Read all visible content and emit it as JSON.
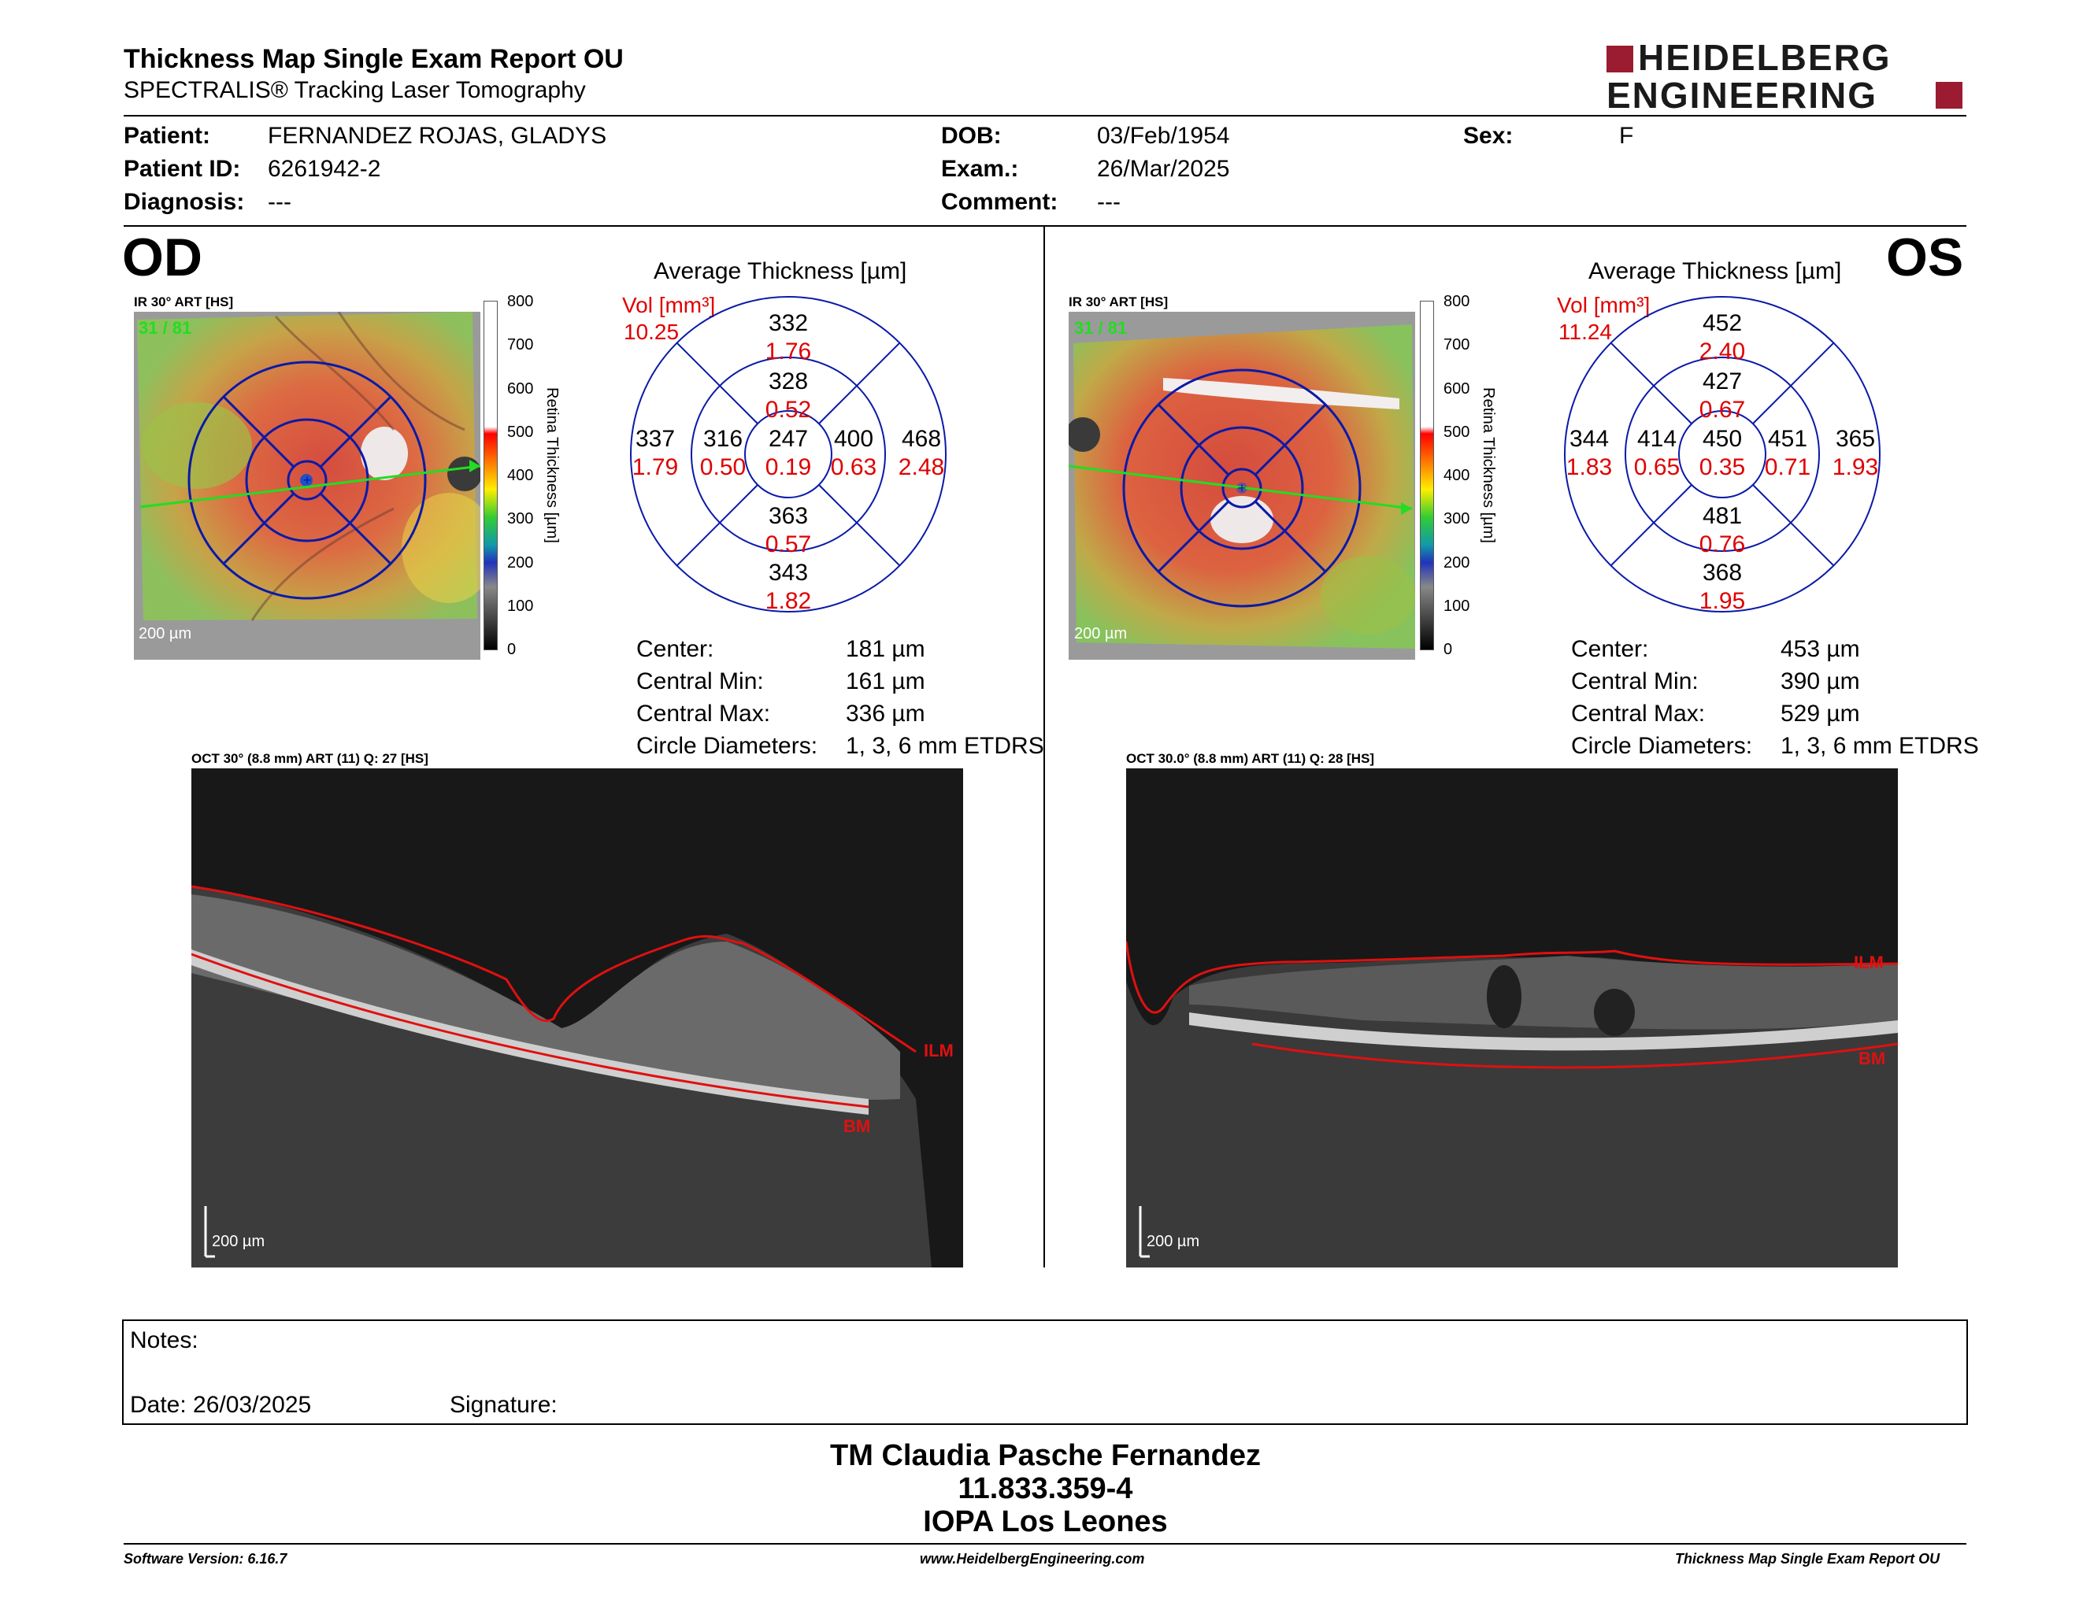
{
  "header": {
    "title": "Thickness Map Single Exam Report OU",
    "subtitle": "SPECTRALIS® Tracking Laser Tomography",
    "brand_line1": "HEIDELBERG",
    "brand_line2": "ENGINEERING"
  },
  "patient": {
    "patient_label": "Patient:",
    "patient_value": "FERNANDEZ ROJAS, GLADYS",
    "id_label": "Patient ID:",
    "id_value": "6261942-2",
    "diagnosis_label": "Diagnosis:",
    "diagnosis_value": "---",
    "dob_label": "DOB:",
    "dob_value": "03/Feb/1954",
    "exam_label": "Exam.:",
    "exam_value": "26/Mar/2025",
    "comment_label": "Comment:",
    "comment_value": "---",
    "sex_label": "Sex:",
    "sex_value": "F"
  },
  "od": {
    "eye": "OD",
    "ir_label": "IR 30° ART [HS]",
    "frames": "31 / 81",
    "scale": "200 µm",
    "avg_title": "Average Thickness [µm]",
    "vol_label": "Vol [mm³]",
    "vol_value": "10.25",
    "etdrs": {
      "center_t": "247",
      "center_v": "0.19",
      "inner_sup_t": "328",
      "inner_sup_v": "0.52",
      "inner_inf_t": "363",
      "inner_inf_v": "0.57",
      "inner_left_t": "316",
      "inner_left_v": "0.50",
      "inner_right_t": "400",
      "inner_right_v": "0.63",
      "outer_sup_t": "332",
      "outer_sup_v": "1.76",
      "outer_inf_t": "343",
      "outer_inf_v": "1.82",
      "outer_left_t": "337",
      "outer_left_v": "1.79",
      "outer_right_t": "468",
      "outer_right_v": "2.48"
    },
    "stats": {
      "center_label": "Center:",
      "center_value": "181 µm",
      "min_label": "Central Min:",
      "min_value": "161 µm",
      "max_label": "Central Max:",
      "max_value": "336 µm",
      "diam_label": "Circle Diameters:",
      "diam_value": "1, 3, 6 mm ETDRS"
    },
    "oct_label": "OCT 30° (8.8 mm) ART (11) Q: 27 [HS]",
    "oct_scale": "200 µm",
    "ilm": "ILM",
    "bm": "BM"
  },
  "os": {
    "eye": "OS",
    "ir_label": "IR 30° ART [HS]",
    "frames": "31 / 81",
    "scale": "200 µm",
    "avg_title": "Average Thickness [µm]",
    "vol_label": "Vol [mm³]",
    "vol_value": "11.24",
    "etdrs": {
      "center_t": "450",
      "center_v": "0.35",
      "inner_sup_t": "427",
      "inner_sup_v": "0.67",
      "inner_inf_t": "481",
      "inner_inf_v": "0.76",
      "inner_left_t": "414",
      "inner_left_v": "0.65",
      "inner_right_t": "451",
      "inner_right_v": "0.71",
      "outer_sup_t": "452",
      "outer_sup_v": "2.40",
      "outer_inf_t": "368",
      "outer_inf_v": "1.95",
      "outer_left_t": "344",
      "outer_left_v": "1.83",
      "outer_right_t": "365",
      "outer_right_v": "1.93"
    },
    "stats": {
      "center_label": "Center:",
      "center_value": "453 µm",
      "min_label": "Central Min:",
      "min_value": "390 µm",
      "max_label": "Central Max:",
      "max_value": "529 µm",
      "diam_label": "Circle Diameters:",
      "diam_value": "1, 3, 6 mm ETDRS"
    },
    "oct_label": "OCT 30.0° (8.8 mm) ART (11) Q: 28 [HS]",
    "oct_scale": "200 µm",
    "ilm": "ILM",
    "bm": "BM"
  },
  "colorbar": {
    "ticks": [
      "800",
      "700",
      "600",
      "500",
      "400",
      "300",
      "200",
      "100",
      "0"
    ],
    "title": "Retina Thickness [µm]"
  },
  "notes": {
    "notes_label": "Notes:",
    "date_label": "Date: 26/03/2025",
    "signature_label": "Signature:"
  },
  "signoff": {
    "name": "TM Claudia Pasche Fernandez",
    "id": "11.833.359-4",
    "org": "IOPA Los Leones"
  },
  "footer": {
    "software": "Software Version: 6.16.7",
    "website": "www.HeidelbergEngineering.com",
    "report": "Thickness Map Single Exam Report OU"
  },
  "colors": {
    "grid_blue": "#0a1aa8",
    "value_red": "#e00000",
    "brand_red": "#9b1b30",
    "scan_green": "#22dd22"
  }
}
